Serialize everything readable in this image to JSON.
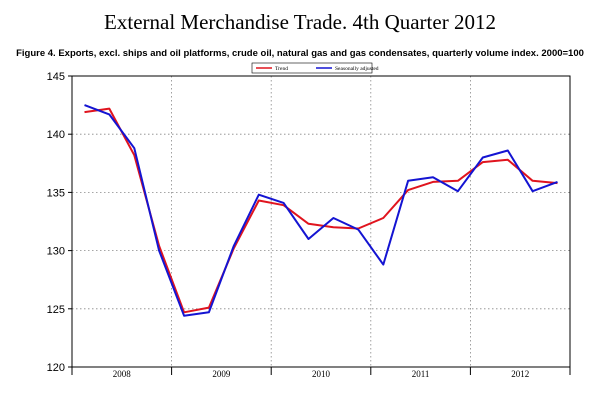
{
  "page": {
    "title": "External Merchandise Trade. 4th Quarter 2012",
    "caption": "Figure 4. Exports, excl. ships and oil platforms, crude oil, natural gas and gas condensates, quarterly volume index. 2000=100"
  },
  "chart_data": {
    "type": "line",
    "title": "Figure 4. Exports, excl. ships and oil platforms, crude oil, natural gas and gas condensates, quarterly volume index. 2000=100",
    "ylim": [
      120,
      145
    ],
    "yticks": [
      120,
      125,
      130,
      135,
      140,
      145
    ],
    "ytick_labels": [
      "120",
      "125",
      "130",
      "135",
      "140",
      "145"
    ],
    "x": [
      "2008Q1",
      "2008Q2",
      "2008Q3",
      "2008Q4",
      "2009Q1",
      "2009Q2",
      "2009Q3",
      "2009Q4",
      "2010Q1",
      "2010Q2",
      "2010Q3",
      "2010Q4",
      "2011Q1",
      "2011Q2",
      "2011Q3",
      "2011Q4",
      "2012Q1",
      "2012Q2",
      "2012Q3",
      "2012Q4"
    ],
    "year_labels": [
      "2008",
      "2009",
      "2010",
      "2011",
      "2012"
    ],
    "grid": true,
    "legend_position": "top-center",
    "series": [
      {
        "name": "Trend",
        "color": "#e0141e",
        "values": [
          141.9,
          142.2,
          138.2,
          130.4,
          124.7,
          125.1,
          130.2,
          134.3,
          133.9,
          132.3,
          132.0,
          131.9,
          132.8,
          135.2,
          135.9,
          136.0,
          137.6,
          137.8,
          136.0,
          135.8
        ]
      },
      {
        "name": "Seasonally adjusted",
        "color": "#1414d2",
        "values": [
          142.5,
          141.7,
          138.8,
          130.0,
          124.4,
          124.7,
          130.4,
          134.8,
          134.1,
          131.0,
          132.8,
          131.8,
          128.8,
          136.0,
          136.3,
          135.1,
          138.0,
          138.6,
          135.1,
          135.9
        ]
      }
    ]
  }
}
